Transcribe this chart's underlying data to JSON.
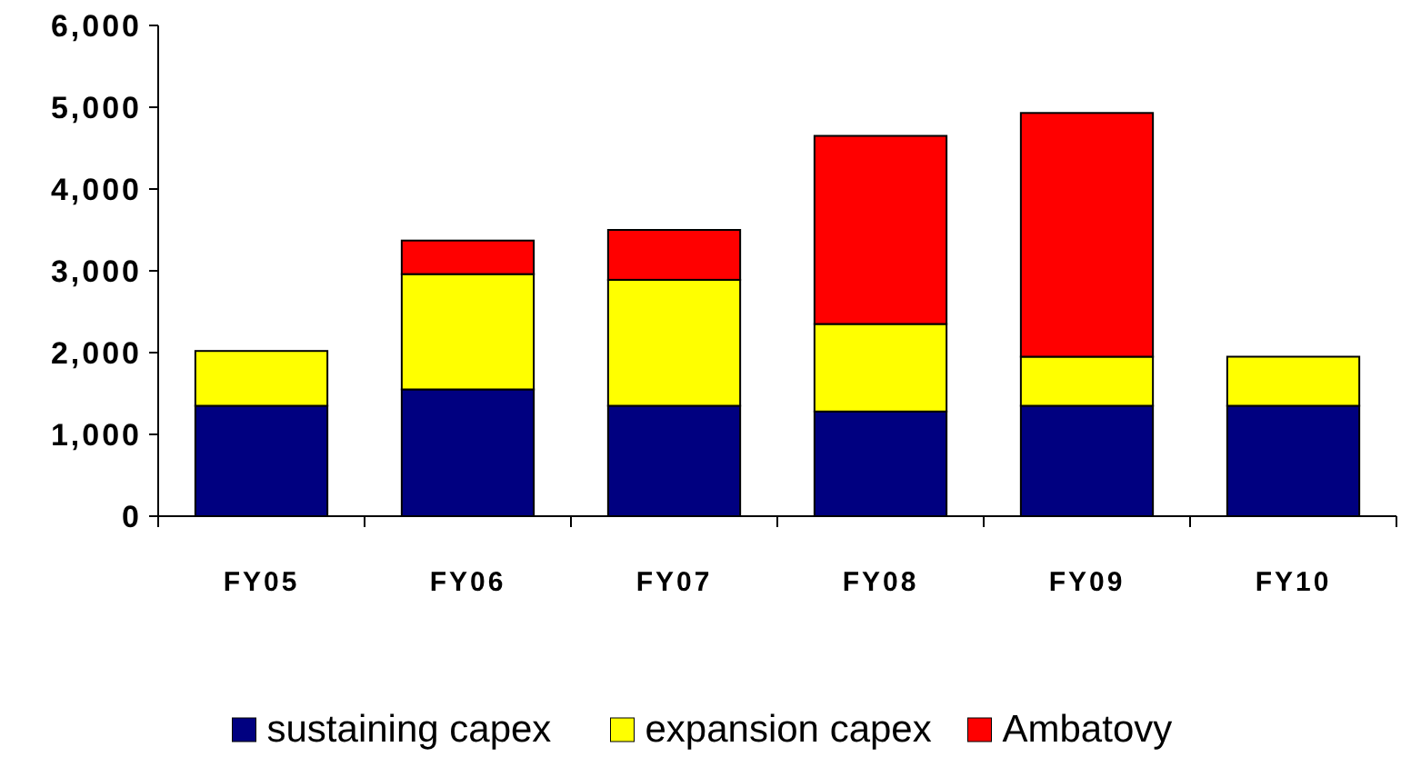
{
  "chart_data": {
    "type": "bar",
    "stacked": true,
    "categories": [
      "FY05",
      "FY06",
      "FY07",
      "FY08",
      "FY09",
      "FY10"
    ],
    "series": [
      {
        "name": "sustaining capex",
        "color": "#000080",
        "values": [
          1350,
          1550,
          1350,
          1280,
          1350,
          1350
        ]
      },
      {
        "name": "expansion capex",
        "color": "#ffff00",
        "values": [
          670,
          1410,
          1540,
          1070,
          600,
          600
        ]
      },
      {
        "name": "Ambatovy",
        "color": "#ff0000",
        "values": [
          null,
          410,
          610,
          2300,
          2980,
          null
        ]
      }
    ],
    "ylim": [
      0,
      6000
    ],
    "yticks": [
      {
        "value": 0,
        "label": "0"
      },
      {
        "value": 1000,
        "label": "1,000"
      },
      {
        "value": 2000,
        "label": "2,000"
      },
      {
        "value": 3000,
        "label": "3,000"
      },
      {
        "value": 4000,
        "label": "4,000"
      },
      {
        "value": 5000,
        "label": "5,000"
      },
      {
        "value": 6000,
        "label": "6,000"
      }
    ],
    "grid": false,
    "legend": "bottom"
  }
}
